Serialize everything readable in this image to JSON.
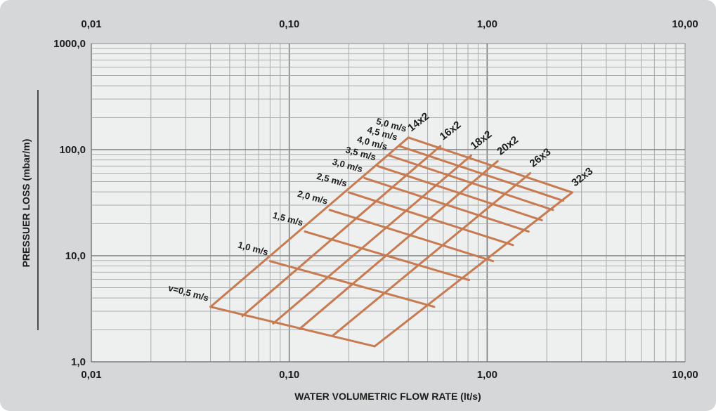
{
  "chart_data": {
    "type": "line",
    "title": "",
    "xlabel": "WATER VOLUMETRIC FLOW RATE (lt/s)",
    "ylabel": "PRESSUER LOSS (mbar/m)",
    "x_scale": "log",
    "y_scale": "log",
    "xlim": [
      0.01,
      10
    ],
    "ylim": [
      1,
      1000
    ],
    "grid": true,
    "x_tick_labels_bottom": [
      "0,01",
      "0,10",
      "1,00",
      "10,00"
    ],
    "x_tick_labels_top": [
      "0,01",
      "0,10",
      "1,00",
      "10,00"
    ],
    "y_tick_labels": [
      "1,0",
      "10,0",
      "100,0",
      "1000,0"
    ],
    "line_color": "#c87a50",
    "velocity_series": [
      {
        "name": "v=0,5 m/s",
        "x": [
          0.04,
          0.27
        ],
        "y": [
          3.3,
          1.4
        ]
      },
      {
        "name": "1,0 m/s",
        "x": [
          0.08,
          0.54
        ],
        "y": [
          8.9,
          3.3
        ]
      },
      {
        "name": "1,5 m/s",
        "x": [
          0.12,
          0.81
        ],
        "y": [
          16.9,
          5.9
        ]
      },
      {
        "name": "2,0 m/s",
        "x": [
          0.16,
          1.07
        ],
        "y": [
          27.0,
          8.9
        ]
      },
      {
        "name": "2,5 m/s",
        "x": [
          0.2,
          1.35
        ],
        "y": [
          39.5,
          12.6
        ]
      },
      {
        "name": "3,0 m/s",
        "x": [
          0.24,
          1.62
        ],
        "y": [
          54.0,
          16.9
        ]
      },
      {
        "name": "3,5 m/s",
        "x": [
          0.28,
          1.89
        ],
        "y": [
          70.0,
          21.6
        ]
      },
      {
        "name": "4,0 m/s",
        "x": [
          0.32,
          2.15
        ],
        "y": [
          88.0,
          27.0
        ]
      },
      {
        "name": "4,5 m/s",
        "x": [
          0.36,
          2.42
        ],
        "y": [
          108.0,
          33.0
        ]
      },
      {
        "name": "5,0 m/s",
        "x": [
          0.4,
          2.69
        ],
        "y": [
          130.0,
          39.5
        ]
      }
    ],
    "pipe_series": [
      {
        "name": "14x2",
        "x": [
          0.04,
          0.4
        ],
        "y": [
          3.3,
          130.0
        ]
      },
      {
        "name": "16x2",
        "x": [
          0.058,
          0.58
        ],
        "y": [
          2.7,
          108.0
        ]
      },
      {
        "name": "18x2",
        "x": [
          0.083,
          0.83
        ],
        "y": [
          2.3,
          88.0
        ]
      },
      {
        "name": "20x2",
        "x": [
          0.113,
          1.13
        ],
        "y": [
          2.05,
          78.0
        ]
      },
      {
        "name": "26x3",
        "x": [
          0.165,
          1.65
        ],
        "y": [
          1.75,
          60.0
        ]
      },
      {
        "name": "32x3",
        "x": [
          0.27,
          2.69
        ],
        "y": [
          1.4,
          39.5
        ]
      }
    ]
  }
}
